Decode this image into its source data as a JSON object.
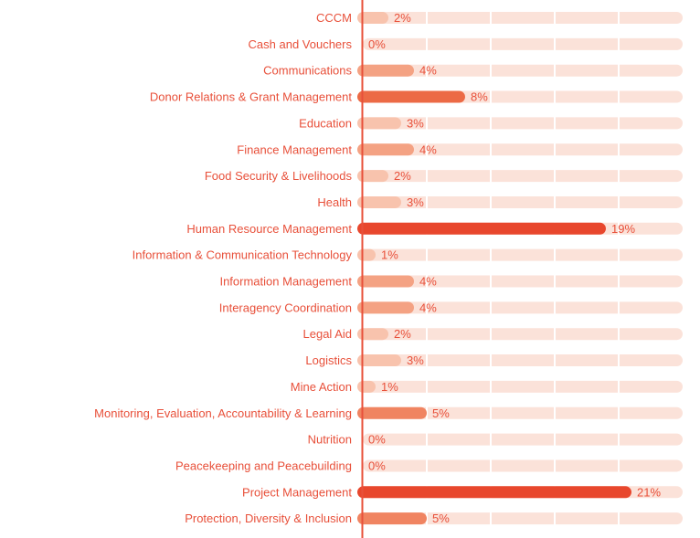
{
  "chart_data": {
    "type": "bar",
    "orientation": "horizontal",
    "categories": [
      "CCCM",
      "Cash and Vouchers",
      "Communications",
      "Donor Relations & Grant Management",
      "Education",
      "Finance Management",
      "Food Security & Livelihoods",
      "Health",
      "Human Resource Management",
      "Information & Communication Technology",
      "Information Management",
      "Interagency Coordination",
      "Legal Aid",
      "Logistics",
      "Mine Action",
      "Monitoring, Evaluation, Accountability & Learning",
      "Nutrition",
      "Peacekeeping and Peacebuilding",
      "Project Management",
      "Protection, Diversity & Inclusion"
    ],
    "values": [
      2,
      0,
      4,
      8,
      3,
      4,
      2,
      3,
      19,
      1,
      4,
      4,
      2,
      3,
      1,
      5,
      0,
      0,
      21,
      5
    ],
    "value_labels": [
      "2%",
      "0%",
      "4%",
      "8%",
      "3%",
      "4%",
      "2%",
      "3%",
      "19%",
      "1%",
      "4%",
      "4%",
      "2%",
      "3%",
      "1%",
      "5%",
      "0%",
      "0%",
      "21%",
      "5%"
    ],
    "xlim": [
      0,
      25
    ],
    "grid": true,
    "colors": {
      "label": "#e8503a",
      "track": "#fbe2d9",
      "axis": "#e8503a",
      "gridline": "#fbe2d9",
      "bar_scale": [
        "#f8c3ad",
        "#f4a283",
        "#f08461",
        "#ec6a45",
        "#e8472d"
      ]
    }
  }
}
